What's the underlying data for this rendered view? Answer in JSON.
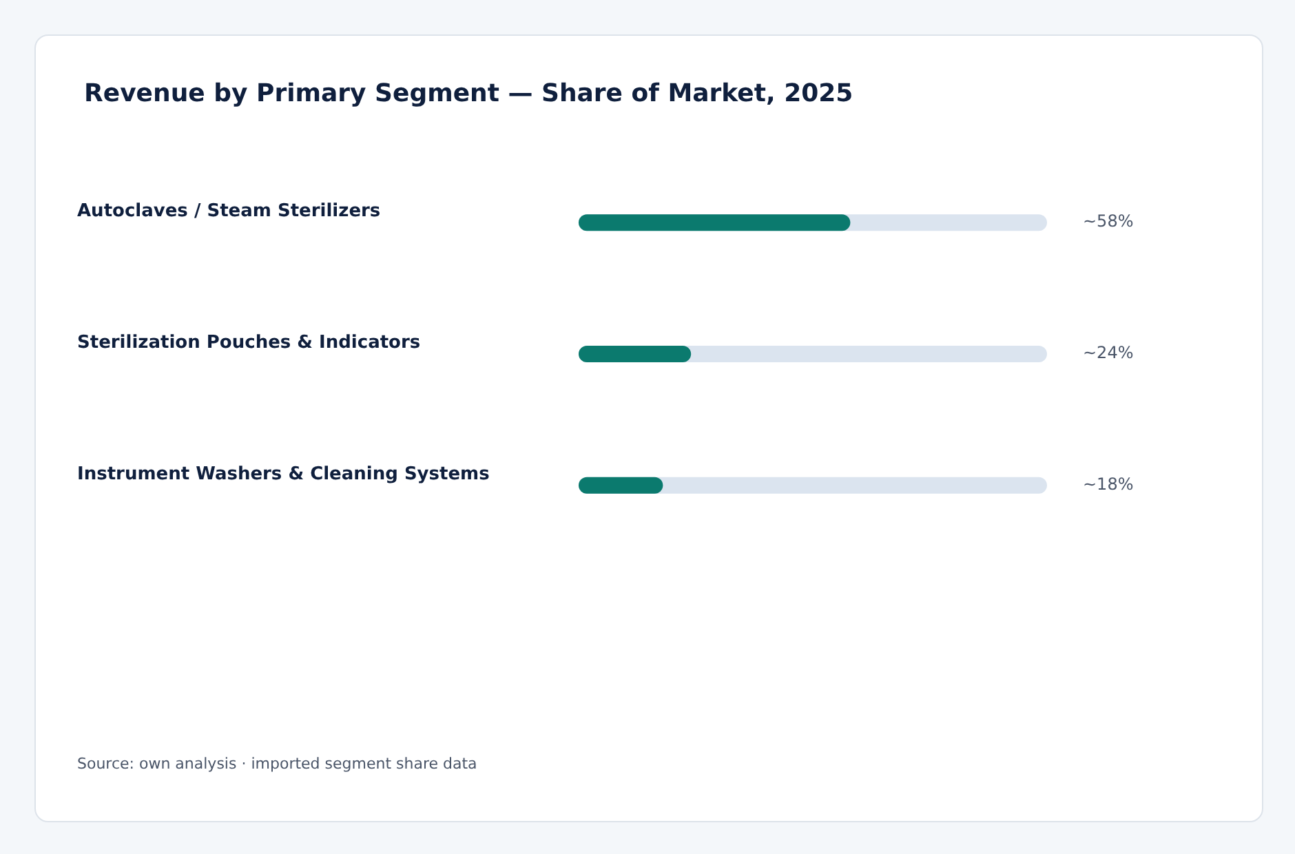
{
  "chart_data": {
    "type": "bar",
    "orientation": "horizontal",
    "title": "Revenue by Primary Segment — Share of Market, 2025",
    "categories": [
      "Autoclaves / Steam Sterilizers",
      "Sterilization Pouches & Indicators",
      "Instrument Washers & Cleaning Systems"
    ],
    "values": [
      58,
      24,
      18
    ],
    "value_labels": [
      "~58%",
      "~24%",
      "~18%"
    ],
    "color": "#0b7a6e",
    "xlim": [
      0,
      100
    ],
    "tick_labels": "y",
    "annotations": [
      "Source: own analysis · imported segment share data"
    ]
  }
}
